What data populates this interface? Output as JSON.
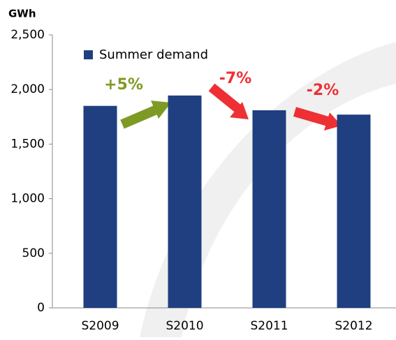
{
  "chart_data": {
    "type": "bar",
    "unit_label": "GWh",
    "categories": [
      "S2009",
      "S2010",
      "S2011",
      "S2012"
    ],
    "series": [
      {
        "name": "Summer demand",
        "color": "#1f3f80",
        "values": [
          1850,
          1945,
          1810,
          1770
        ]
      }
    ],
    "ylim": [
      0,
      2500
    ],
    "yticks": [
      0,
      500,
      {
        "value": 1000,
        "label": "1,000"
      },
      {
        "value": 1500,
        "label": "1,500"
      },
      {
        "value": 2000,
        "label": "2,000"
      },
      {
        "value": 2500,
        "label": "2,500"
      }
    ],
    "annotations": [
      {
        "text": "+5%",
        "color": "#7f9a24"
      },
      {
        "text": "-7%",
        "color": "#ee3035"
      },
      {
        "text": "-2%",
        "color": "#ee3035"
      }
    ]
  }
}
